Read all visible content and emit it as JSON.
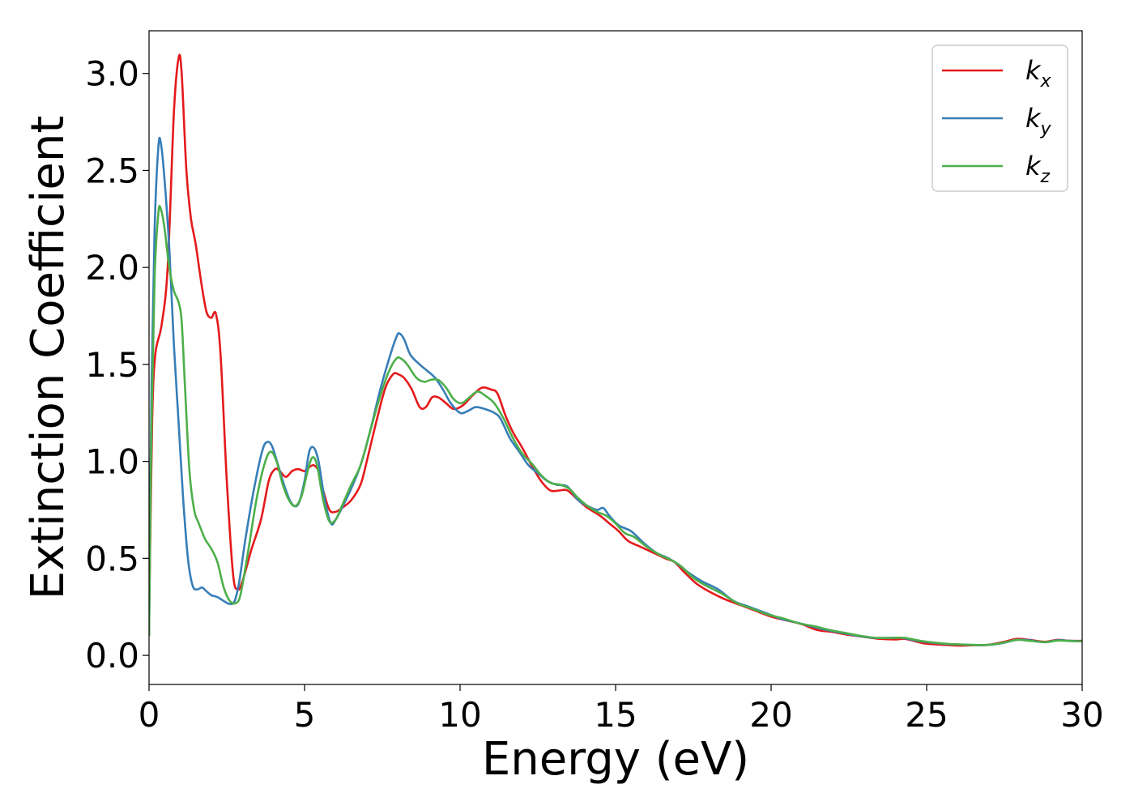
{
  "chart_data": {
    "type": "line",
    "xlabel": "Energy (eV)",
    "ylabel": "Extinction Coefficient",
    "xlim": [
      0,
      30
    ],
    "ylim": [
      -0.15,
      3.22
    ],
    "xticks": [
      0,
      5,
      10,
      15,
      20,
      25,
      30
    ],
    "xtick_labels": [
      "0",
      "5",
      "10",
      "15",
      "20",
      "25",
      "30"
    ],
    "yticks": [
      0.0,
      0.5,
      1.0,
      1.5,
      2.0,
      2.5,
      3.0
    ],
    "ytick_labels": [
      "0.0",
      "0.5",
      "1.0",
      "1.5",
      "2.0",
      "2.5",
      "3.0"
    ],
    "grid": false,
    "legend_position": "top-right",
    "series": [
      {
        "name": "k",
        "subscript": "x",
        "color": "#e41a1c",
        "points": [
          [
            0,
            0.15
          ],
          [
            0.1,
            1.2
          ],
          [
            0.2,
            1.55
          ],
          [
            0.4,
            1.7
          ],
          [
            0.6,
            2.0
          ],
          [
            0.8,
            2.8
          ],
          [
            0.95,
            3.08
          ],
          [
            1.05,
            3.0
          ],
          [
            1.2,
            2.5
          ],
          [
            1.35,
            2.25
          ],
          [
            1.5,
            2.12
          ],
          [
            1.7,
            1.9
          ],
          [
            1.85,
            1.77
          ],
          [
            2.0,
            1.74
          ],
          [
            2.15,
            1.76
          ],
          [
            2.3,
            1.55
          ],
          [
            2.5,
            0.9
          ],
          [
            2.7,
            0.42
          ],
          [
            2.85,
            0.34
          ],
          [
            3.0,
            0.38
          ],
          [
            3.3,
            0.55
          ],
          [
            3.6,
            0.7
          ],
          [
            3.85,
            0.9
          ],
          [
            4.05,
            0.96
          ],
          [
            4.2,
            0.95
          ],
          [
            4.4,
            0.92
          ],
          [
            4.6,
            0.95
          ],
          [
            4.8,
            0.96
          ],
          [
            5.0,
            0.95
          ],
          [
            5.15,
            0.97
          ],
          [
            5.3,
            0.98
          ],
          [
            5.45,
            0.95
          ],
          [
            5.6,
            0.85
          ],
          [
            5.8,
            0.75
          ],
          [
            6.0,
            0.74
          ],
          [
            6.2,
            0.76
          ],
          [
            6.5,
            0.8
          ],
          [
            6.8,
            0.88
          ],
          [
            7.0,
            1.0
          ],
          [
            7.3,
            1.2
          ],
          [
            7.6,
            1.38
          ],
          [
            7.85,
            1.45
          ],
          [
            8.0,
            1.45
          ],
          [
            8.2,
            1.43
          ],
          [
            8.45,
            1.37
          ],
          [
            8.7,
            1.28
          ],
          [
            8.9,
            1.28
          ],
          [
            9.1,
            1.33
          ],
          [
            9.3,
            1.33
          ],
          [
            9.55,
            1.3
          ],
          [
            9.8,
            1.27
          ],
          [
            10.1,
            1.29
          ],
          [
            10.4,
            1.34
          ],
          [
            10.7,
            1.38
          ],
          [
            11.0,
            1.37
          ],
          [
            11.2,
            1.35
          ],
          [
            11.45,
            1.24
          ],
          [
            11.7,
            1.15
          ],
          [
            12.0,
            1.07
          ],
          [
            12.3,
            0.98
          ],
          [
            12.6,
            0.9
          ],
          [
            12.9,
            0.85
          ],
          [
            13.2,
            0.85
          ],
          [
            13.45,
            0.85
          ],
          [
            13.8,
            0.8
          ],
          [
            14.1,
            0.76
          ],
          [
            14.5,
            0.72
          ],
          [
            14.8,
            0.68
          ],
          [
            15.1,
            0.64
          ],
          [
            15.4,
            0.59
          ],
          [
            15.8,
            0.56
          ],
          [
            16.2,
            0.53
          ],
          [
            16.6,
            0.5
          ],
          [
            16.9,
            0.48
          ],
          [
            17.2,
            0.43
          ],
          [
            17.6,
            0.37
          ],
          [
            18.0,
            0.33
          ],
          [
            18.5,
            0.29
          ],
          [
            19.0,
            0.26
          ],
          [
            19.5,
            0.23
          ],
          [
            20.0,
            0.2
          ],
          [
            20.5,
            0.18
          ],
          [
            21.0,
            0.16
          ],
          [
            21.5,
            0.13
          ],
          [
            22.0,
            0.12
          ],
          [
            22.5,
            0.105
          ],
          [
            23.0,
            0.095
          ],
          [
            23.5,
            0.085
          ],
          [
            24.0,
            0.082
          ],
          [
            24.3,
            0.085
          ],
          [
            24.7,
            0.07
          ],
          [
            25.0,
            0.06
          ],
          [
            25.5,
            0.055
          ],
          [
            26.0,
            0.05
          ],
          [
            26.5,
            0.052
          ],
          [
            27.0,
            0.055
          ],
          [
            27.5,
            0.07
          ],
          [
            27.9,
            0.085
          ],
          [
            28.3,
            0.08
          ],
          [
            28.8,
            0.07
          ],
          [
            29.2,
            0.08
          ],
          [
            29.6,
            0.075
          ],
          [
            30.0,
            0.075
          ]
        ]
      },
      {
        "name": "k",
        "subscript": "y",
        "color": "#377eb8",
        "points": [
          [
            0,
            0.1
          ],
          [
            0.08,
            1.4
          ],
          [
            0.18,
            2.2
          ],
          [
            0.3,
            2.62
          ],
          [
            0.38,
            2.64
          ],
          [
            0.5,
            2.45
          ],
          [
            0.65,
            2.1
          ],
          [
            0.8,
            1.6
          ],
          [
            0.95,
            1.2
          ],
          [
            1.1,
            0.8
          ],
          [
            1.25,
            0.5
          ],
          [
            1.4,
            0.36
          ],
          [
            1.55,
            0.34
          ],
          [
            1.7,
            0.35
          ],
          [
            1.85,
            0.33
          ],
          [
            2.0,
            0.31
          ],
          [
            2.2,
            0.3
          ],
          [
            2.4,
            0.28
          ],
          [
            2.6,
            0.265
          ],
          [
            2.75,
            0.28
          ],
          [
            2.9,
            0.38
          ],
          [
            3.1,
            0.6
          ],
          [
            3.4,
            0.88
          ],
          [
            3.65,
            1.06
          ],
          [
            3.8,
            1.1
          ],
          [
            3.95,
            1.08
          ],
          [
            4.15,
            0.98
          ],
          [
            4.4,
            0.85
          ],
          [
            4.6,
            0.78
          ],
          [
            4.8,
            0.78
          ],
          [
            5.0,
            0.9
          ],
          [
            5.15,
            1.05
          ],
          [
            5.3,
            1.07
          ],
          [
            5.45,
            1.0
          ],
          [
            5.65,
            0.8
          ],
          [
            5.85,
            0.68
          ],
          [
            6.0,
            0.7
          ],
          [
            6.2,
            0.76
          ],
          [
            6.5,
            0.86
          ],
          [
            6.8,
            0.98
          ],
          [
            7.1,
            1.15
          ],
          [
            7.4,
            1.35
          ],
          [
            7.7,
            1.52
          ],
          [
            7.95,
            1.64
          ],
          [
            8.05,
            1.66
          ],
          [
            8.2,
            1.63
          ],
          [
            8.4,
            1.55
          ],
          [
            8.7,
            1.5
          ],
          [
            9.0,
            1.46
          ],
          [
            9.2,
            1.43
          ],
          [
            9.45,
            1.37
          ],
          [
            9.7,
            1.3
          ],
          [
            10.0,
            1.25
          ],
          [
            10.25,
            1.26
          ],
          [
            10.5,
            1.28
          ],
          [
            10.8,
            1.27
          ],
          [
            11.1,
            1.25
          ],
          [
            11.3,
            1.22
          ],
          [
            11.6,
            1.12
          ],
          [
            11.9,
            1.05
          ],
          [
            12.2,
            0.98
          ],
          [
            12.5,
            0.94
          ],
          [
            12.8,
            0.9
          ],
          [
            13.1,
            0.88
          ],
          [
            13.45,
            0.87
          ],
          [
            13.8,
            0.8
          ],
          [
            14.1,
            0.77
          ],
          [
            14.4,
            0.75
          ],
          [
            14.6,
            0.76
          ],
          [
            14.8,
            0.72
          ],
          [
            15.1,
            0.67
          ],
          [
            15.5,
            0.64
          ],
          [
            15.9,
            0.58
          ],
          [
            16.3,
            0.53
          ],
          [
            16.7,
            0.5
          ],
          [
            17.0,
            0.47
          ],
          [
            17.4,
            0.42
          ],
          [
            17.8,
            0.38
          ],
          [
            18.3,
            0.34
          ],
          [
            18.8,
            0.28
          ],
          [
            19.3,
            0.25
          ],
          [
            19.8,
            0.22
          ],
          [
            20.3,
            0.19
          ],
          [
            20.8,
            0.17
          ],
          [
            21.3,
            0.15
          ],
          [
            21.8,
            0.13
          ],
          [
            22.3,
            0.115
          ],
          [
            22.8,
            0.1
          ],
          [
            23.3,
            0.09
          ],
          [
            23.8,
            0.09
          ],
          [
            24.2,
            0.09
          ],
          [
            24.7,
            0.075
          ],
          [
            25.2,
            0.065
          ],
          [
            25.7,
            0.058
          ],
          [
            26.2,
            0.055
          ],
          [
            26.7,
            0.052
          ],
          [
            27.1,
            0.055
          ],
          [
            27.5,
            0.065
          ],
          [
            27.9,
            0.08
          ],
          [
            28.3,
            0.078
          ],
          [
            28.8,
            0.068
          ],
          [
            29.2,
            0.078
          ],
          [
            29.6,
            0.075
          ],
          [
            30.0,
            0.072
          ]
        ]
      },
      {
        "name": "k",
        "subscript": "z",
        "color": "#4daf4a",
        "points": [
          [
            0,
            0.1
          ],
          [
            0.08,
            1.2
          ],
          [
            0.18,
            1.95
          ],
          [
            0.3,
            2.28
          ],
          [
            0.38,
            2.3
          ],
          [
            0.5,
            2.2
          ],
          [
            0.65,
            2.0
          ],
          [
            0.8,
            1.88
          ],
          [
            0.95,
            1.82
          ],
          [
            1.05,
            1.72
          ],
          [
            1.15,
            1.4
          ],
          [
            1.3,
            0.95
          ],
          [
            1.45,
            0.75
          ],
          [
            1.6,
            0.68
          ],
          [
            1.8,
            0.6
          ],
          [
            2.0,
            0.55
          ],
          [
            2.2,
            0.48
          ],
          [
            2.4,
            0.35
          ],
          [
            2.6,
            0.28
          ],
          [
            2.8,
            0.27
          ],
          [
            2.95,
            0.32
          ],
          [
            3.2,
            0.55
          ],
          [
            3.45,
            0.8
          ],
          [
            3.7,
            0.98
          ],
          [
            3.9,
            1.05
          ],
          [
            4.1,
            1.0
          ],
          [
            4.3,
            0.88
          ],
          [
            4.5,
            0.8
          ],
          [
            4.7,
            0.77
          ],
          [
            4.9,
            0.82
          ],
          [
            5.1,
            0.95
          ],
          [
            5.25,
            1.02
          ],
          [
            5.4,
            0.98
          ],
          [
            5.6,
            0.8
          ],
          [
            5.8,
            0.69
          ],
          [
            6.0,
            0.7
          ],
          [
            6.2,
            0.77
          ],
          [
            6.5,
            0.88
          ],
          [
            6.8,
            0.98
          ],
          [
            7.1,
            1.15
          ],
          [
            7.4,
            1.32
          ],
          [
            7.7,
            1.46
          ],
          [
            7.95,
            1.53
          ],
          [
            8.1,
            1.53
          ],
          [
            8.3,
            1.5
          ],
          [
            8.6,
            1.43
          ],
          [
            8.85,
            1.41
          ],
          [
            9.05,
            1.42
          ],
          [
            9.3,
            1.42
          ],
          [
            9.55,
            1.38
          ],
          [
            9.8,
            1.32
          ],
          [
            10.05,
            1.3
          ],
          [
            10.3,
            1.33
          ],
          [
            10.55,
            1.36
          ],
          [
            10.8,
            1.34
          ],
          [
            11.1,
            1.3
          ],
          [
            11.4,
            1.22
          ],
          [
            11.7,
            1.12
          ],
          [
            12.0,
            1.04
          ],
          [
            12.3,
            0.99
          ],
          [
            12.6,
            0.93
          ],
          [
            12.9,
            0.89
          ],
          [
            13.2,
            0.88
          ],
          [
            13.5,
            0.86
          ],
          [
            13.8,
            0.81
          ],
          [
            14.1,
            0.77
          ],
          [
            14.4,
            0.74
          ],
          [
            14.7,
            0.72
          ],
          [
            15.0,
            0.68
          ],
          [
            15.3,
            0.63
          ],
          [
            15.6,
            0.61
          ],
          [
            16.0,
            0.56
          ],
          [
            16.4,
            0.52
          ],
          [
            16.8,
            0.49
          ],
          [
            17.1,
            0.46
          ],
          [
            17.5,
            0.4
          ],
          [
            17.9,
            0.36
          ],
          [
            18.4,
            0.32
          ],
          [
            18.9,
            0.27
          ],
          [
            19.4,
            0.24
          ],
          [
            19.9,
            0.21
          ],
          [
            20.4,
            0.19
          ],
          [
            20.9,
            0.165
          ],
          [
            21.4,
            0.15
          ],
          [
            21.9,
            0.13
          ],
          [
            22.4,
            0.115
          ],
          [
            22.9,
            0.1
          ],
          [
            23.4,
            0.09
          ],
          [
            23.9,
            0.09
          ],
          [
            24.3,
            0.09
          ],
          [
            24.8,
            0.075
          ],
          [
            25.3,
            0.065
          ],
          [
            25.8,
            0.058
          ],
          [
            26.3,
            0.055
          ],
          [
            26.8,
            0.053
          ],
          [
            27.2,
            0.058
          ],
          [
            27.6,
            0.07
          ],
          [
            27.9,
            0.08
          ],
          [
            28.3,
            0.075
          ],
          [
            28.8,
            0.068
          ],
          [
            29.2,
            0.076
          ],
          [
            29.6,
            0.074
          ],
          [
            30.0,
            0.072
          ]
        ]
      }
    ]
  }
}
